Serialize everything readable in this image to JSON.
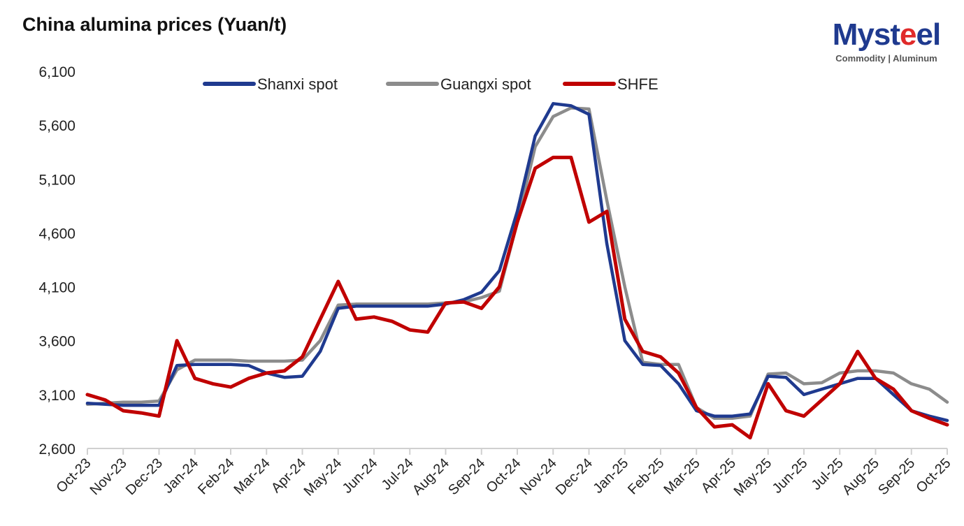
{
  "header": {
    "title": "China alumina prices (Yuan/t)",
    "logo_main_pre": "Myst",
    "logo_main_accent": "e",
    "logo_main_post": "el",
    "logo_sub": "Commodity | Aluminum"
  },
  "colors": {
    "shanxi": "#1f3a8f",
    "guangxi": "#8c8c8c",
    "shfe": "#c00000",
    "axis": "#d0d0d0"
  },
  "chart_data": {
    "type": "line",
    "title": "China alumina prices (Yuan/t)",
    "xlabel": "",
    "ylabel": "Yuan/t",
    "ylim": [
      2600,
      6100
    ],
    "yticks": [
      "6,100",
      "5,600",
      "5,100",
      "4,600",
      "4,100",
      "3,600",
      "3,100",
      "2,600"
    ],
    "xticks": [
      "Oct-23",
      "Nov-23",
      "Dec-23",
      "Jan-24",
      "Feb-24",
      "Mar-24",
      "Apr-24",
      "May-24",
      "Jun-24",
      "Jul-24",
      "Aug-24",
      "Sep-24",
      "Oct-24",
      "Nov-24",
      "Dec-24",
      "Jan-25",
      "Feb-25",
      "Mar-25",
      "Apr-25",
      "May-25",
      "Jun-25",
      "Jul-25",
      "Aug-25",
      "Sep-25",
      "Oct-25"
    ],
    "grid": false,
    "legend_position": "top",
    "x": [
      0,
      0.5,
      1,
      1.5,
      2,
      2.5,
      3,
      3.5,
      4,
      4.5,
      5,
      5.5,
      6,
      6.5,
      7,
      7.5,
      8,
      8.5,
      9,
      9.5,
      10,
      10.5,
      11,
      11.5,
      12,
      12.5,
      13,
      13.5,
      14,
      14.5,
      15,
      15.5,
      16,
      16.5,
      17,
      17.5,
      18,
      18.5,
      19,
      19.5,
      20,
      20.5,
      21,
      21.5,
      22,
      22.5,
      23,
      23.5,
      24
    ],
    "series": [
      {
        "name": "Shanxi spot",
        "values": [
          3020,
          3010,
          3000,
          3000,
          3000,
          3370,
          3380,
          3380,
          3380,
          3370,
          3300,
          3260,
          3270,
          3500,
          3900,
          3920,
          3920,
          3920,
          3920,
          3920,
          3940,
          3980,
          4050,
          4250,
          4800,
          5500,
          5800,
          5780,
          5700,
          4500,
          3600,
          3380,
          3370,
          3200,
          2950,
          2900,
          2900,
          2920,
          3270,
          3260,
          3100,
          3150,
          3200,
          3250,
          3250,
          3100,
          2950,
          2900,
          2860
        ]
      },
      {
        "name": "Guangxi spot",
        "values": [
          3010,
          3020,
          3030,
          3030,
          3040,
          3330,
          3420,
          3420,
          3420,
          3410,
          3410,
          3410,
          3420,
          3600,
          3930,
          3940,
          3940,
          3940,
          3940,
          3940,
          3950,
          3960,
          4000,
          4060,
          4700,
          5400,
          5680,
          5760,
          5750,
          4900,
          4100,
          3400,
          3380,
          3380,
          2980,
          2880,
          2880,
          2900,
          3290,
          3300,
          3200,
          3210,
          3300,
          3320,
          3320,
          3300,
          3200,
          3150,
          3030
        ]
      },
      {
        "name": "SHFE",
        "values": [
          3100,
          3050,
          2950,
          2930,
          2900,
          3600,
          3250,
          3200,
          3170,
          3250,
          3300,
          3320,
          3450,
          3800,
          4150,
          3800,
          3820,
          3780,
          3700,
          3680,
          3950,
          3960,
          3900,
          4100,
          4700,
          5200,
          5300,
          5300,
          4700,
          4800,
          3800,
          3500,
          3450,
          3300,
          2980,
          2800,
          2820,
          2700,
          3200,
          2950,
          2900,
          3050,
          3200,
          3500,
          3250,
          3150,
          2950,
          2880,
          2820
        ]
      }
    ]
  }
}
